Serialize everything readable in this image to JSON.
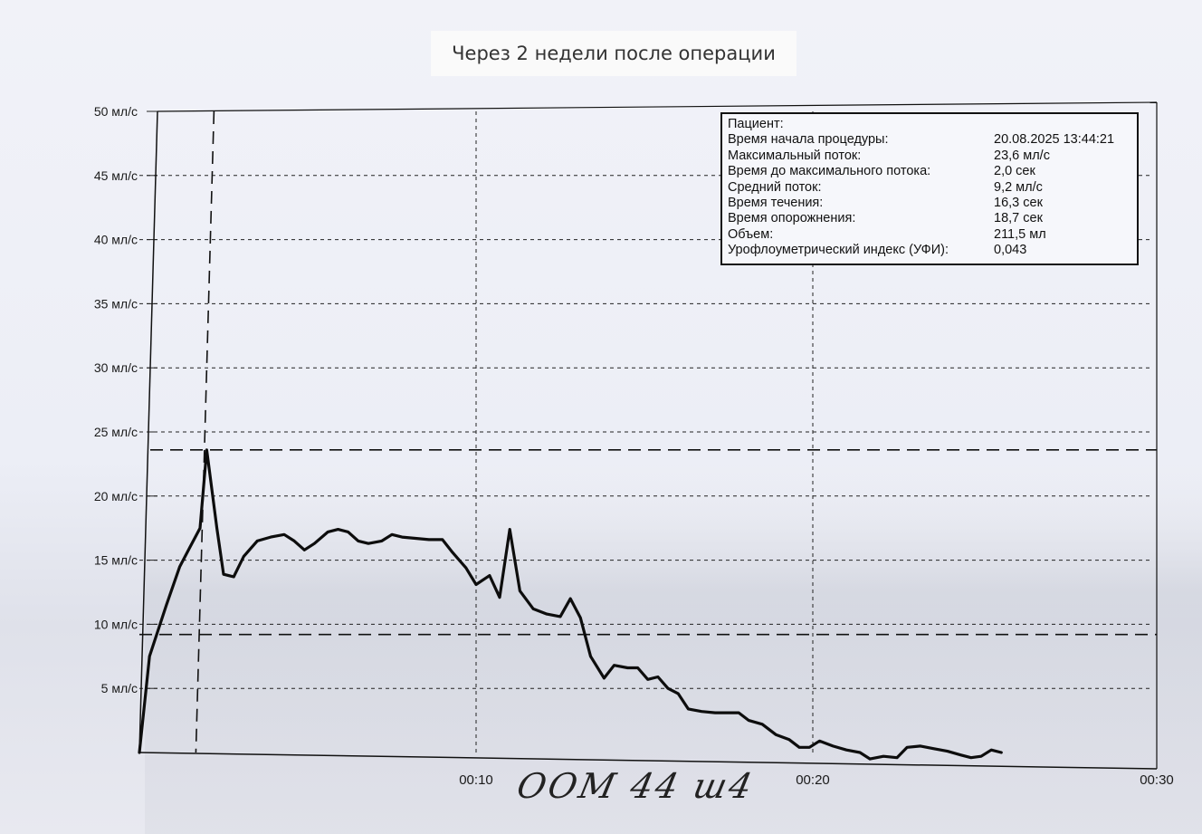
{
  "caption": "Через 2 недели после операции",
  "handwritten_note": "OOM 44 ш4",
  "info_box": {
    "rows": [
      {
        "label": "Пациент:",
        "value": ""
      },
      {
        "label": "Время начала процедуры:",
        "value": "20.08.2025 13:44:21"
      },
      {
        "label": "Максимальный поток:",
        "value": "23,6 мл/с"
      },
      {
        "label": "Время до максимального потока:",
        "value": "2,0 сек"
      },
      {
        "label": "Средний поток:",
        "value": "9,2 мл/с"
      },
      {
        "label": "Время течения:",
        "value": "16,3 сек"
      },
      {
        "label": "Время опорожнения:",
        "value": "18,7 сек"
      },
      {
        "label": "Объем:",
        "value": "211,5 мл"
      },
      {
        "label": "Урофлоуметрический индекс (УФИ):",
        "value": "0,043"
      }
    ]
  },
  "chart_data": {
    "type": "line",
    "title": "",
    "xlabel": "",
    "ylabel": "",
    "xlim": [
      0,
      30
    ],
    "ylim": [
      0,
      50
    ],
    "x_ticks": [
      {
        "value": 10,
        "label": "00:10"
      },
      {
        "value": 20,
        "label": "00:20"
      },
      {
        "value": 30,
        "label": "00:30"
      }
    ],
    "y_ticks": [
      {
        "value": 5,
        "label": "5 мл/с"
      },
      {
        "value": 10,
        "label": "10 мл/с"
      },
      {
        "value": 15,
        "label": "15 мл/с"
      },
      {
        "value": 20,
        "label": "20 мл/с"
      },
      {
        "value": 25,
        "label": "25 мл/с"
      },
      {
        "value": 30,
        "label": "30 мл/с"
      },
      {
        "value": 35,
        "label": "35 мл/с"
      },
      {
        "value": 40,
        "label": "40 мл/с"
      },
      {
        "value": 45,
        "label": "45 мл/с"
      },
      {
        "value": 50,
        "label": "50 мл/с"
      }
    ],
    "grid": true,
    "reference_lines": {
      "max_flow": 23.6,
      "avg_flow": 9.2,
      "time_to_max": 2.0
    },
    "series": [
      {
        "values": [
          [
            0,
            0
          ],
          [
            0.3,
            7.5
          ],
          [
            0.8,
            11.5
          ],
          [
            1.2,
            14.5
          ],
          [
            1.5,
            16.0
          ],
          [
            1.8,
            17.5
          ],
          [
            2.0,
            23.6
          ],
          [
            2.3,
            17.5
          ],
          [
            2.5,
            13.9
          ],
          [
            2.8,
            13.7
          ],
          [
            3.1,
            15.3
          ],
          [
            3.5,
            16.5
          ],
          [
            3.9,
            16.8
          ],
          [
            4.3,
            17.0
          ],
          [
            4.6,
            16.5
          ],
          [
            4.9,
            15.8
          ],
          [
            5.2,
            16.3
          ],
          [
            5.6,
            17.2
          ],
          [
            5.9,
            17.4
          ],
          [
            6.2,
            17.2
          ],
          [
            6.5,
            16.5
          ],
          [
            6.8,
            16.3
          ],
          [
            7.2,
            16.5
          ],
          [
            7.5,
            17.0
          ],
          [
            7.8,
            16.8
          ],
          [
            8.2,
            16.7
          ],
          [
            8.6,
            16.6
          ],
          [
            9.0,
            16.6
          ],
          [
            9.3,
            15.6
          ],
          [
            9.7,
            14.4
          ],
          [
            10.0,
            13.1
          ],
          [
            10.4,
            13.8
          ],
          [
            10.7,
            12.1
          ],
          [
            11.0,
            17.4
          ],
          [
            11.3,
            12.6
          ],
          [
            11.7,
            11.2
          ],
          [
            12.1,
            10.8
          ],
          [
            12.5,
            10.6
          ],
          [
            12.8,
            12.0
          ],
          [
            13.1,
            10.5
          ],
          [
            13.4,
            7.5
          ],
          [
            13.8,
            5.8
          ],
          [
            14.1,
            6.8
          ],
          [
            14.5,
            6.6
          ],
          [
            14.8,
            6.6
          ],
          [
            15.1,
            5.7
          ],
          [
            15.4,
            5.9
          ],
          [
            15.7,
            5.0
          ],
          [
            16.0,
            4.6
          ],
          [
            16.3,
            3.4
          ],
          [
            16.7,
            3.2
          ],
          [
            17.1,
            3.1
          ],
          [
            17.5,
            3.1
          ],
          [
            17.8,
            3.1
          ],
          [
            18.1,
            2.5
          ],
          [
            18.5,
            2.2
          ],
          [
            18.9,
            1.4
          ],
          [
            19.3,
            1.0
          ],
          [
            19.6,
            0.4
          ],
          [
            19.9,
            0.4
          ],
          [
            20.2,
            0.9
          ],
          [
            20.6,
            0.5
          ],
          [
            21.0,
            0.2
          ],
          [
            21.4,
            0.0
          ],
          [
            21.7,
            -0.5
          ],
          [
            22.1,
            -0.3
          ],
          [
            22.5,
            -0.4
          ],
          [
            22.8,
            0.4
          ],
          [
            23.2,
            0.5
          ],
          [
            23.6,
            0.3
          ],
          [
            24.0,
            0.1
          ],
          [
            24.4,
            -0.2
          ],
          [
            24.7,
            -0.4
          ],
          [
            25.0,
            -0.3
          ],
          [
            25.3,
            0.2
          ],
          [
            25.6,
            0.0
          ]
        ]
      }
    ]
  }
}
